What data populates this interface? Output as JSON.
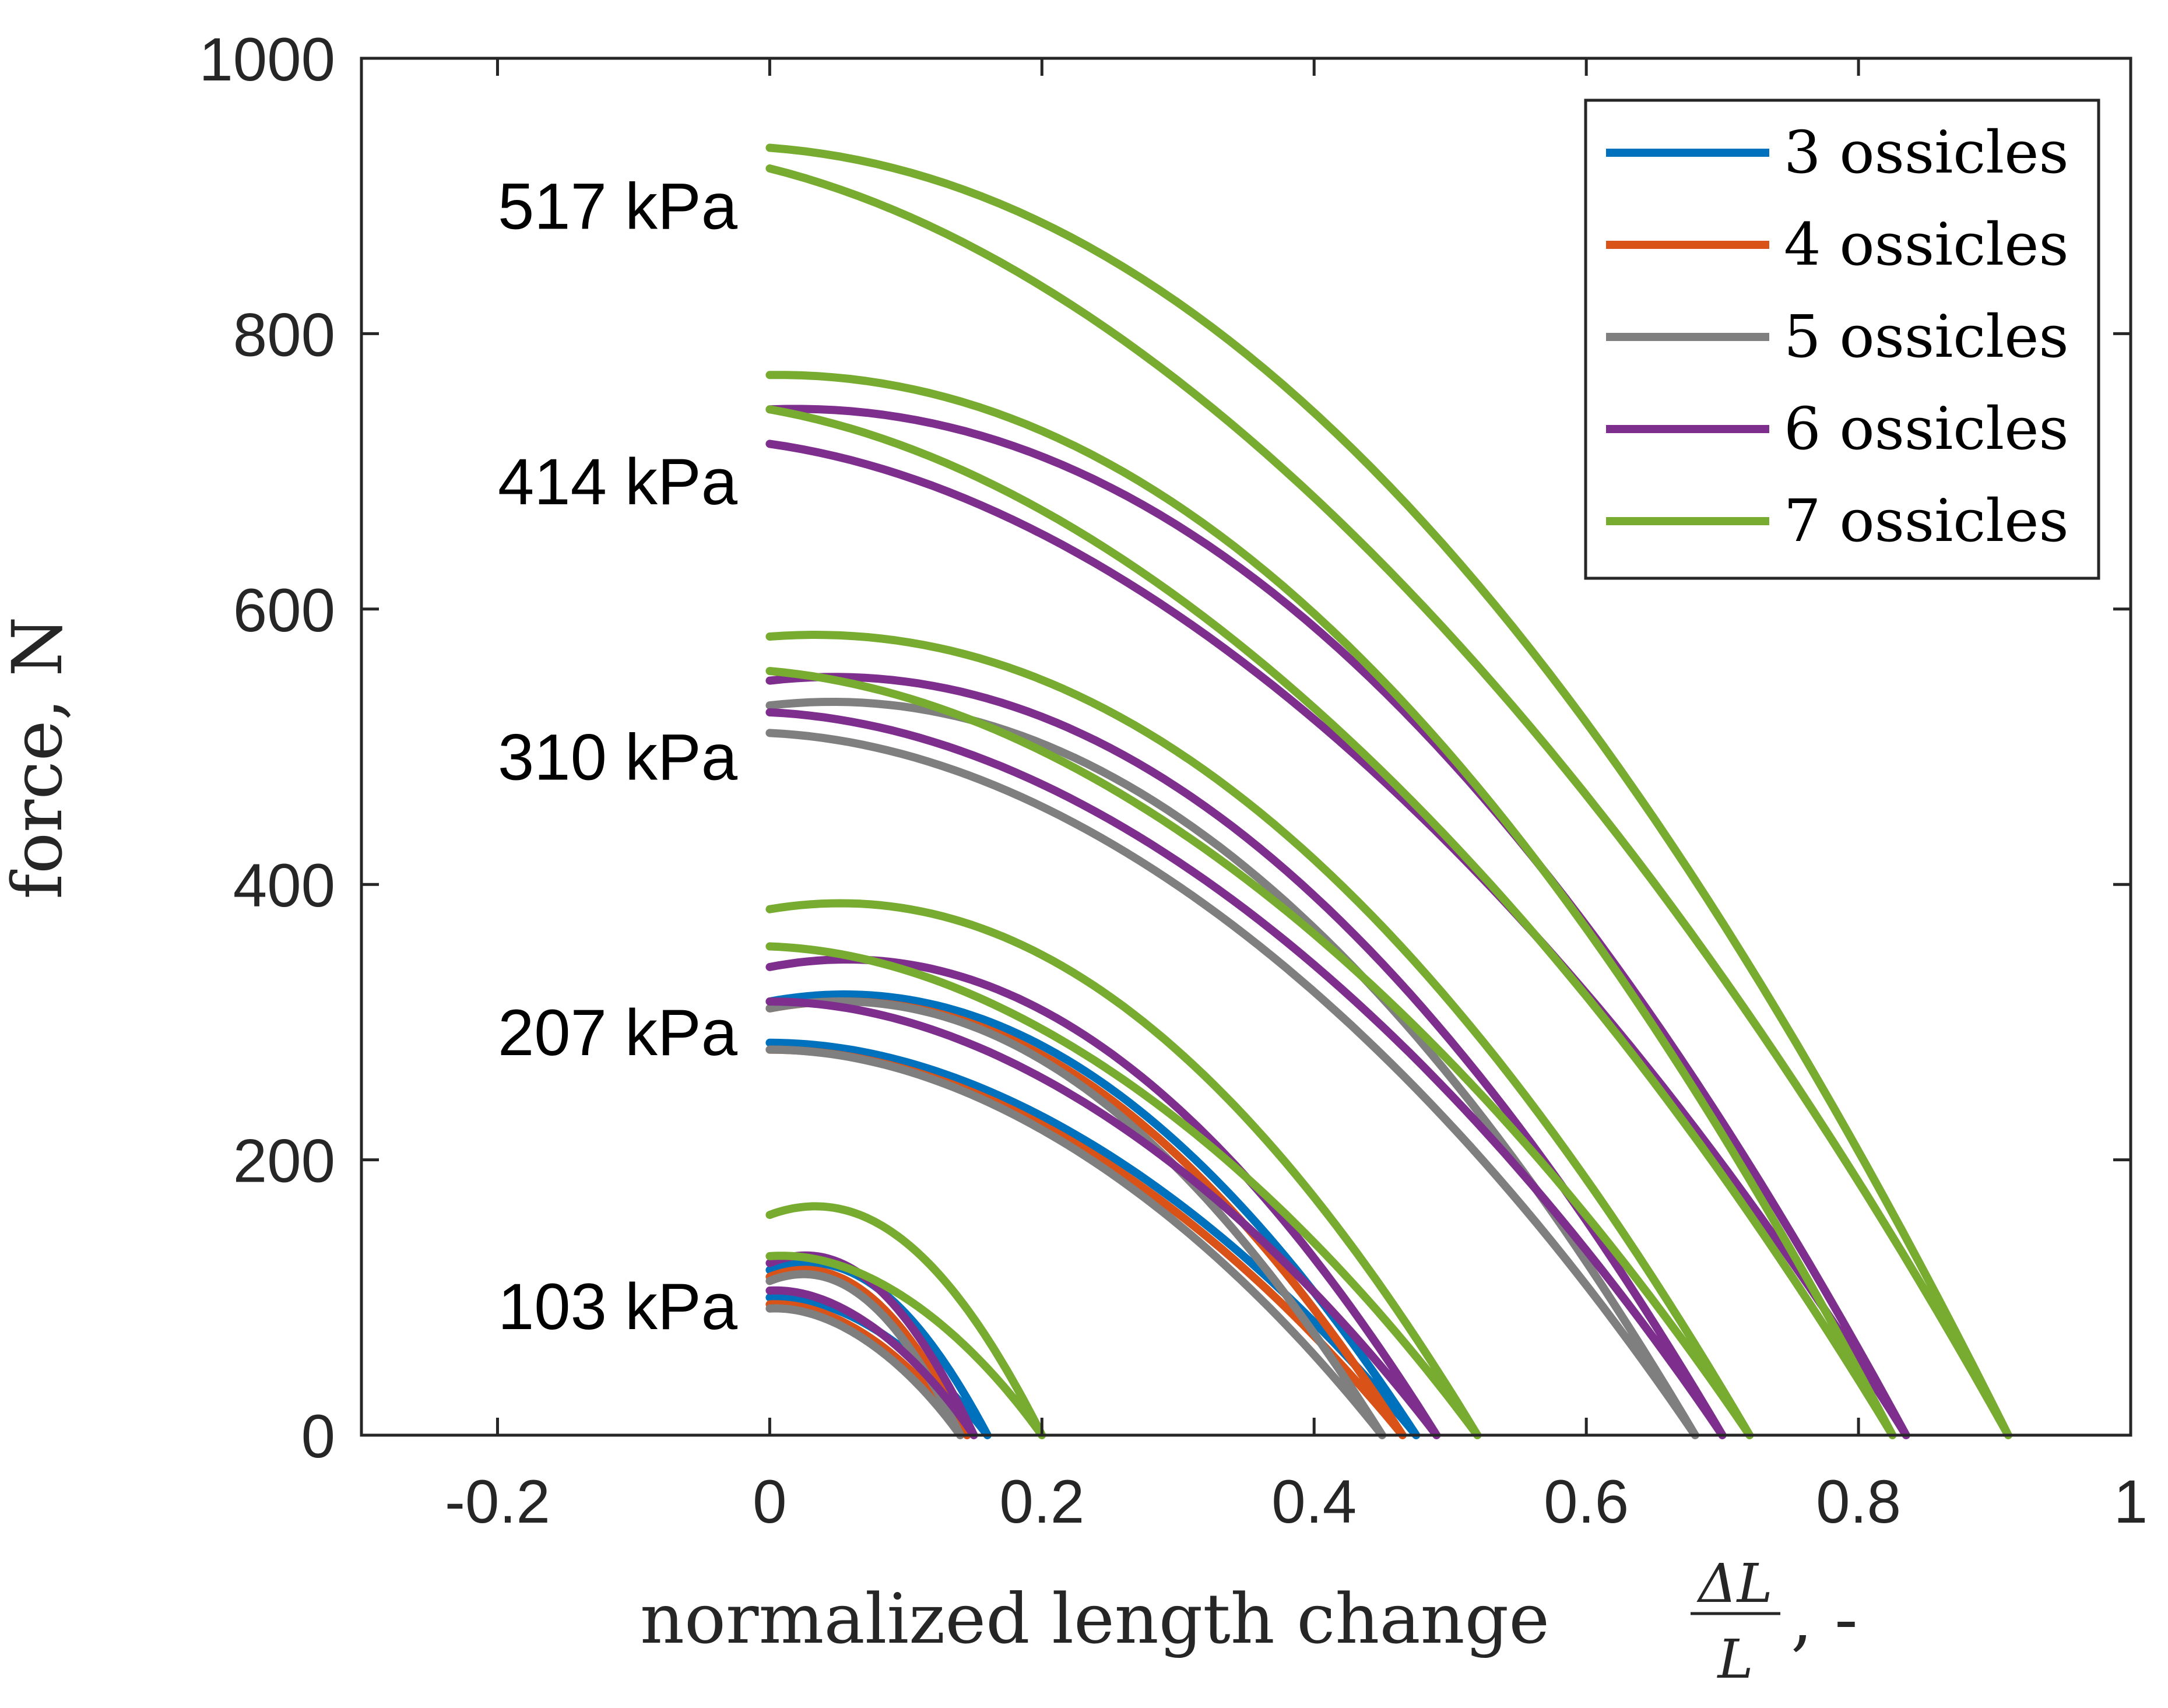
{
  "chart_data": {
    "type": "line",
    "title": "",
    "xlabel": "normalized length change",
    "xlabel_fraction": {
      "numerator": "ΔL",
      "denominator": "L"
    },
    "xlabel_suffix": ", -",
    "ylabel": "force, N",
    "xlim": [
      -0.3,
      1.0
    ],
    "ylim": [
      0,
      1000
    ],
    "xticks": [
      -0.2,
      0,
      0.2,
      0.4,
      0.6,
      0.8,
      1
    ],
    "xtick_labels": [
      "-0.2",
      "0",
      "0.2",
      "0.4",
      "0.6",
      "0.8",
      "1"
    ],
    "yticks": [
      0,
      200,
      400,
      600,
      800,
      1000
    ],
    "ytick_labels": [
      "0",
      "200",
      "400",
      "600",
      "800",
      "1000"
    ],
    "grid": false,
    "legend_position": "top-right",
    "series": [
      {
        "name": "3 ossicles",
        "color": "#0072BD"
      },
      {
        "name": "4 ossicles",
        "color": "#D95319"
      },
      {
        "name": "5 ossicles",
        "color": "#7F7F7F"
      },
      {
        "name": "6 ossicles",
        "color": "#7E2F8E"
      },
      {
        "name": "7 ossicles",
        "color": "#77AC30"
      }
    ],
    "pressure_levels": [
      {
        "label": "517 kPa",
        "y": 893
      },
      {
        "label": "414 kPa",
        "y": 693
      },
      {
        "label": "310 kPa",
        "y": 493
      },
      {
        "label": "207 kPa",
        "y": 293
      },
      {
        "label": "103 kPa",
        "y": 94
      }
    ],
    "loops": [
      {
        "series": 0,
        "pressure": "103 kPa",
        "topLoad": 120,
        "topUnload": 100,
        "xmax": 0.16,
        "curv": 1.3,
        "gap": 0.06
      },
      {
        "series": 1,
        "pressure": "103 kPa",
        "topLoad": 115,
        "topUnload": 95,
        "xmax": 0.145,
        "curv": 1.3,
        "gap": 0.06
      },
      {
        "series": 2,
        "pressure": "103 kPa",
        "topLoad": 112,
        "topUnload": 92,
        "xmax": 0.14,
        "curv": 1.3,
        "gap": 0.06
      },
      {
        "series": 3,
        "pressure": "103 kPa",
        "topLoad": 125,
        "topUnload": 105,
        "xmax": 0.15,
        "curv": 1.3,
        "gap": 0.06
      },
      {
        "series": 4,
        "pressure": "103 kPa",
        "topLoad": 160,
        "topUnload": 130,
        "xmax": 0.2,
        "curv": 1.3,
        "gap": 0.05
      },
      {
        "series": 0,
        "pressure": "207 kPa",
        "topLoad": 315,
        "topUnload": 285,
        "xmax": 0.475,
        "curv": 1.15,
        "gap": 0.04
      },
      {
        "series": 1,
        "pressure": "207 kPa",
        "topLoad": 310,
        "topUnload": 280,
        "xmax": 0.465,
        "curv": 1.15,
        "gap": 0.04
      },
      {
        "series": 2,
        "pressure": "207 kPa",
        "topLoad": 310,
        "topUnload": 280,
        "xmax": 0.45,
        "curv": 1.15,
        "gap": 0.04
      },
      {
        "series": 3,
        "pressure": "207 kPa",
        "topLoad": 340,
        "topUnload": 315,
        "xmax": 0.49,
        "curv": 1.15,
        "gap": 0.04
      },
      {
        "series": 4,
        "pressure": "207 kPa",
        "topLoad": 382,
        "topUnload": 355,
        "xmax": 0.52,
        "curv": 1.1,
        "gap": 0.04
      },
      {
        "series": 2,
        "pressure": "310 kPa",
        "topLoad": 530,
        "topUnload": 510,
        "xmax": 0.68,
        "curv": 1.05,
        "gap": 0.03
      },
      {
        "series": 3,
        "pressure": "310 kPa",
        "topLoad": 548,
        "topUnload": 525,
        "xmax": 0.7,
        "curv": 1.05,
        "gap": 0.03
      },
      {
        "series": 4,
        "pressure": "310 kPa",
        "topLoad": 580,
        "topUnload": 555,
        "xmax": 0.72,
        "curv": 1.0,
        "gap": 0.03
      },
      {
        "series": 3,
        "pressure": "414 kPa",
        "topLoad": 745,
        "topUnload": 720,
        "xmax": 0.835,
        "curv": 0.95,
        "gap": 0.03
      },
      {
        "series": 4,
        "pressure": "414 kPa",
        "topLoad": 770,
        "topUnload": 745,
        "xmax": 0.825,
        "curv": 0.92,
        "gap": 0.03
      },
      {
        "series": 4,
        "pressure": "517 kPa",
        "topLoad": 935,
        "topUnload": 920,
        "xmax": 0.91,
        "curv": 0.85,
        "gap": 0.025
      }
    ]
  }
}
